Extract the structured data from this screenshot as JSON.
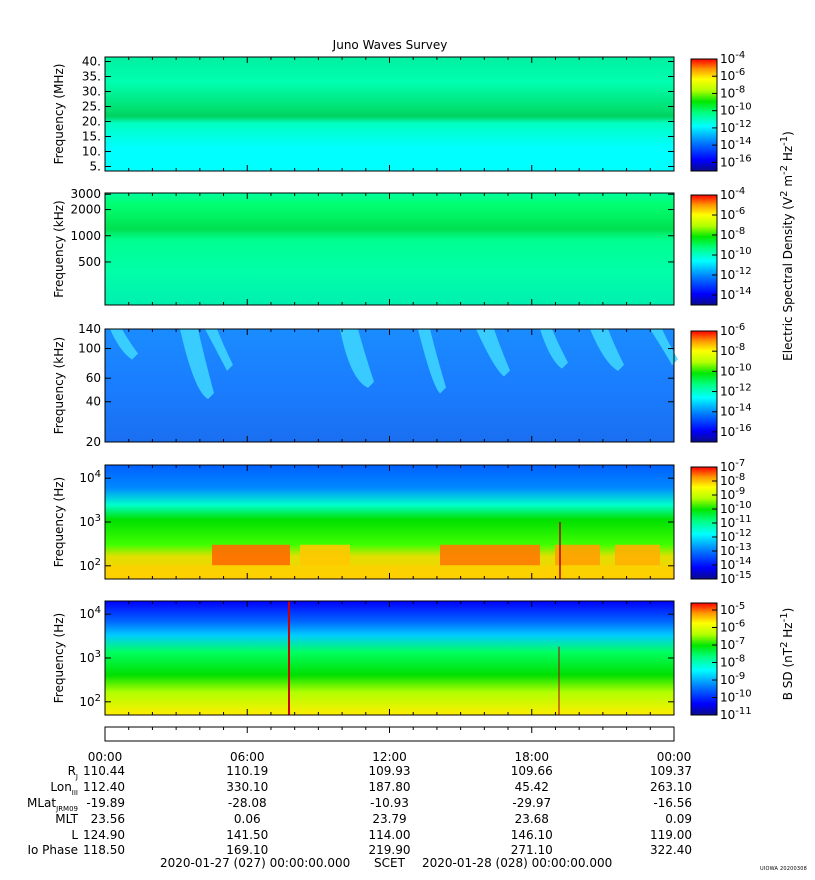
{
  "title": "Juno Waves Survey",
  "chart_data": [
    {
      "type": "heatmap",
      "ylabel": "Frequency (MHz)",
      "y_scale": "linear",
      "ylim": [
        3.5,
        41.5
      ],
      "y_ticks": [
        "40.",
        "35.",
        "30.",
        "25.",
        "20.",
        "15.",
        "10.",
        "5."
      ],
      "y_tick_values": [
        40,
        35,
        30,
        25,
        20,
        15,
        10,
        5
      ],
      "colorbar_ticks": [
        "-4",
        "-6",
        "-8",
        "-10",
        "-12",
        "-14",
        "-16"
      ],
      "colorbar_tick_exponents": [
        -4,
        -6,
        -8,
        -10,
        -12,
        -14,
        -16
      ],
      "colorbar_range": [
        -17,
        -4
      ]
    },
    {
      "type": "heatmap",
      "ylabel": "Frequency (kHz)",
      "y_scale": "log",
      "ylim": [
        160,
        3100
      ],
      "y_ticks": [
        "3000",
        "2000",
        "1000",
        "500"
      ],
      "y_tick_values": [
        3000,
        2000,
        1000,
        500
      ],
      "colorbar_ticks": [
        "-4",
        "-6",
        "-8",
        "-10",
        "-12",
        "-14"
      ],
      "colorbar_tick_exponents": [
        -4,
        -6,
        -8,
        -10,
        -12,
        -14
      ],
      "colorbar_range": [
        -15,
        -4
      ]
    },
    {
      "type": "heatmap",
      "ylabel": "Frequency (kHz)",
      "y_scale": "log",
      "ylim": [
        20,
        140
      ],
      "y_ticks": [
        "140",
        "100",
        "60",
        "40",
        "20"
      ],
      "y_tick_values": [
        140,
        100,
        60,
        40,
        20
      ],
      "colorbar_ticks": [
        "-6",
        "-8",
        "-10",
        "-12",
        "-14",
        "-16"
      ],
      "colorbar_tick_exponents": [
        -6,
        -8,
        -10,
        -12,
        -14,
        -16
      ],
      "colorbar_range": [
        -17,
        -6
      ]
    },
    {
      "type": "heatmap",
      "ylabel": "Frequency (Hz)",
      "y_scale": "log",
      "ylim": [
        50,
        20000
      ],
      "y_ticks": [
        "4",
        "3",
        "2"
      ],
      "y_tick_values": [
        10000,
        1000,
        100
      ],
      "colorbar_ticks": [
        "-7",
        "-8",
        "-9",
        "-10",
        "-11",
        "-12",
        "-13",
        "-14",
        "-15"
      ],
      "colorbar_tick_exponents": [
        -7,
        -8,
        -9,
        -10,
        -11,
        -12,
        -13,
        -14,
        -15
      ],
      "colorbar_range": [
        -15,
        -7
      ]
    },
    {
      "type": "heatmap",
      "ylabel": "Frequency (Hz)",
      "y_scale": "log",
      "ylim": [
        50,
        20000
      ],
      "y_ticks": [
        "4",
        "3",
        "2"
      ],
      "y_tick_values": [
        10000,
        1000,
        100
      ],
      "colorbar_ticks": [
        "-5",
        "-6",
        "-7",
        "-8",
        "-9",
        "-10",
        "-11"
      ],
      "colorbar_tick_exponents": [
        -5,
        -6,
        -7,
        -8,
        -9,
        -10,
        -11
      ],
      "colorbar_range": [
        -11,
        -4.6
      ]
    }
  ],
  "colorbar_label_e": "Electric Spectral Density (V",
  "colorbar_label_b": "B SD (nT",
  "time_ticks": [
    "00:00",
    "06:00",
    "12:00",
    "18:00",
    "00:00"
  ],
  "ephemeris": [
    {
      "label": "R",
      "sub": "J",
      "values": [
        "110.44",
        "110.19",
        "109.93",
        "109.66",
        "109.37"
      ]
    },
    {
      "label": "Lon",
      "sub": "III",
      "values": [
        "112.40",
        "330.10",
        "187.80",
        "45.42",
        "263.10"
      ]
    },
    {
      "label": "MLat",
      "sub": "JRM09",
      "values": [
        "-19.89",
        "-28.08",
        "-10.93",
        "-29.97",
        "-16.56"
      ]
    },
    {
      "label": "MLT",
      "sub": "",
      "values": [
        "23.56",
        "0.06",
        "23.79",
        "23.68",
        "0.09"
      ]
    },
    {
      "label": "L",
      "sub": "",
      "values": [
        "124.90",
        "141.50",
        "114.00",
        "146.10",
        "119.00"
      ]
    },
    {
      "label": "Io Phase",
      "sub": "",
      "values": [
        "118.50",
        "169.10",
        "219.90",
        "271.10",
        "322.40"
      ]
    }
  ],
  "footer": {
    "start": "2020-01-27 (027) 00:00:00.000",
    "scet": "SCET",
    "end": "2020-01-28 (028) 00:00:00.000"
  },
  "credit": "UIOWA 20200308"
}
